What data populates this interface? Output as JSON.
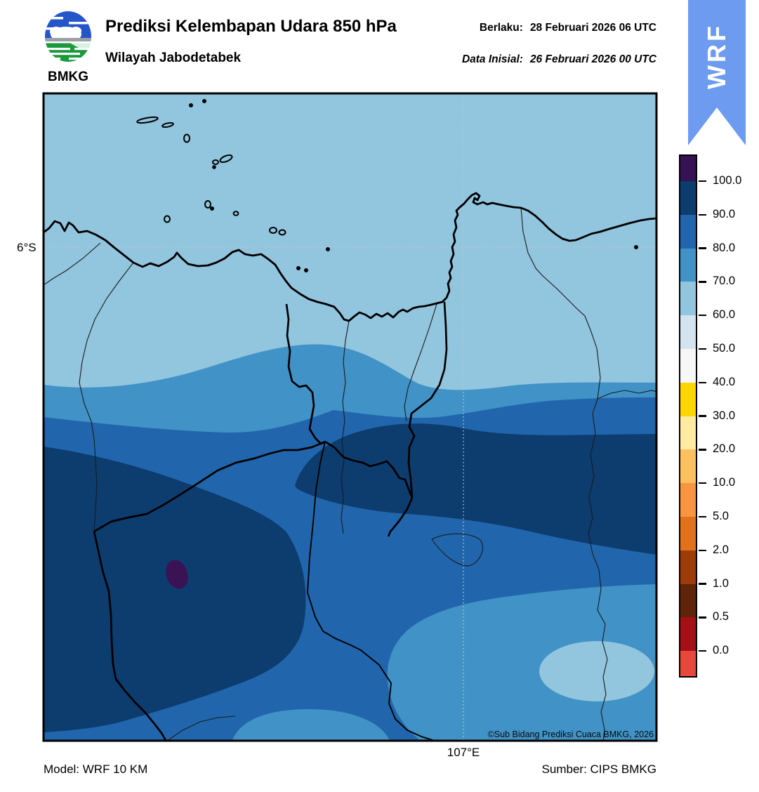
{
  "header": {
    "logo_text": "BMKG",
    "title": "Prediksi Kelembapan Udara 850 hPa",
    "subtitle": "Wilayah Jabodetabek",
    "valid_label": "Berlaku:",
    "valid_value": "28 Februari 2026 06 UTC",
    "init_label": "Data Inisial:",
    "init_value": "26 Februari 2026 00 UTC",
    "ribbon": "WRF"
  },
  "map": {
    "lat_label": "6°S",
    "lon_label": "107°E",
    "copyright": "©Sub Bidang Prediksi Cuaca BMKG, 2026"
  },
  "footer": {
    "model": "Model: WRF 10 KM",
    "source": "Sumber: CIPS BMKG"
  },
  "colorbar": {
    "tick_labels": [
      "100.0",
      "90.0",
      "80.0",
      "70.0",
      "60.0",
      "50.0",
      "40.0",
      "30.0",
      "20.0",
      "10.0",
      "5.0",
      "2.0",
      "1.0",
      "0.5",
      "0.0"
    ],
    "segment_colors": [
      "#351253",
      "#0d3c6e",
      "#2166ac",
      "#4192c6",
      "#92c5de",
      "#d3e3f0",
      "#f7f7f7",
      "#fdd500",
      "#ffeaa2",
      "#fdc05f",
      "#f79540",
      "#e2711b",
      "#9c3d09",
      "#5f2409",
      "#a31016",
      "#e8483b"
    ]
  },
  "colors": {
    "band_60_70": "#92c5de",
    "band_70_80": "#4192c6",
    "band_80_90": "#2166ac",
    "band_90_100": "#0d3c6e",
    "band_gt_100": "#3b1254",
    "ribbon_blue": "#6d9bf0",
    "logo_blue": "#2456c9",
    "logo_green": "#1a9a3c"
  },
  "chart_data": {
    "type": "heatmap",
    "subtype": "filled-contour-weather-map",
    "title": "Prediksi Kelembapan Udara 850 hPa",
    "region": "Wilayah Jabodetabek",
    "parameter": "Relative humidity at 850 hPa",
    "unit": "%",
    "valid_time": "28 Februari 2026 06 UTC",
    "initial_time": "26 Februari 2026 00 UTC",
    "model": "WRF 10 KM",
    "source": "CIPS BMKG",
    "contour_levels": [
      0,
      0.5,
      1,
      2,
      5,
      10,
      20,
      30,
      40,
      50,
      60,
      70,
      80,
      90,
      100
    ],
    "colorbar_orientation": "vertical-right",
    "gridlines": {
      "lat": [
        "6°S"
      ],
      "lon": [
        "107°E"
      ]
    },
    "visible_value_range": [
      60,
      100
    ],
    "spatial_pattern": "Java Sea and northern coastal strip 60-70%; humidity increases southward in west-east bands (70-80%, 80-90%); large >90% area over southwest inland with a small >100 core; a second >90% band stretches east across the center; drier 60-80% pockets in the southeast corner."
  }
}
